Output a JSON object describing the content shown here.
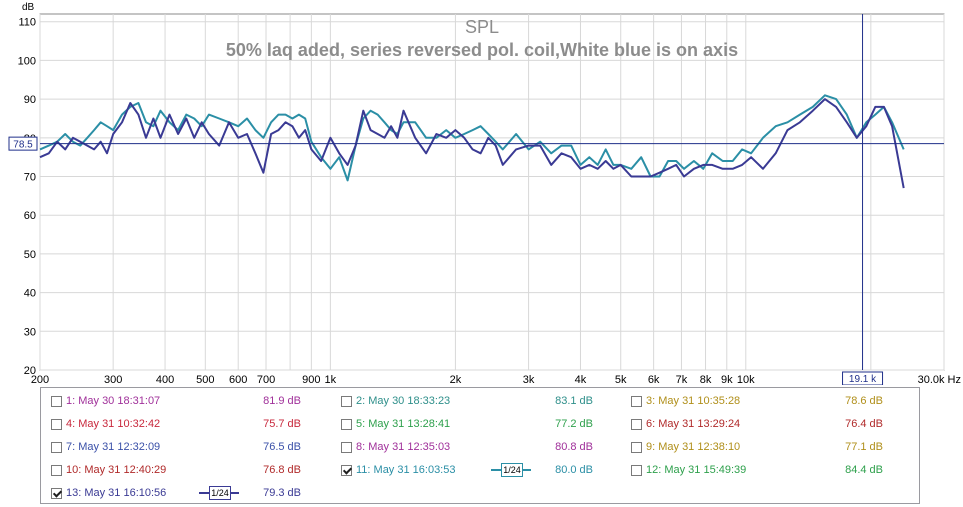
{
  "chart_data": {
    "type": "line",
    "title": "SPL",
    "subtitle": "50% laq aded, series reversed pol. coil,White blue is on axis",
    "ylabel": "dB",
    "xunit": "Hz",
    "xscale": "log",
    "xlim": [
      200,
      30000
    ],
    "ylim": [
      20,
      112
    ],
    "yticks": [
      "110",
      "100",
      "90",
      "80",
      "70",
      "60",
      "50",
      "40",
      "30",
      "20"
    ],
    "xticks": [
      "200",
      "300",
      "400",
      "500",
      "600",
      "700",
      "900",
      "1k",
      "2k",
      "3k",
      "4k",
      "5k",
      "6k",
      "7k",
      "8k",
      "9k",
      "10k",
      "30.0k Hz"
    ],
    "grid": true,
    "cursor": {
      "x_label": "19.1 k",
      "y_label": "78.5",
      "x_hz": 19100,
      "y_db": 78.5
    },
    "series": [
      {
        "name": "11: May 31 16:03:53",
        "color": "#2b8fa6",
        "x": [
          200,
          210,
          220,
          230,
          240,
          250,
          260,
          270,
          280,
          290,
          300,
          315,
          330,
          345,
          360,
          375,
          390,
          410,
          430,
          450,
          470,
          490,
          510,
          540,
          570,
          600,
          630,
          660,
          690,
          720,
          750,
          780,
          810,
          840,
          870,
          900,
          950,
          1000,
          1050,
          1100,
          1150,
          1200,
          1250,
          1300,
          1350,
          1400,
          1450,
          1500,
          1600,
          1700,
          1800,
          1900,
          2000,
          2100,
          2200,
          2300,
          2400,
          2500,
          2600,
          2800,
          3000,
          3200,
          3400,
          3600,
          3800,
          4000,
          4200,
          4400,
          4600,
          4800,
          5000,
          5300,
          5600,
          5900,
          6200,
          6500,
          6800,
          7100,
          7500,
          7900,
          8300,
          8800,
          9300,
          9800,
          10300,
          11000,
          11800,
          12600,
          13500,
          14500,
          15500,
          16500,
          17500,
          18500,
          19500,
          20500,
          21500,
          22500,
          24000
        ],
        "values": [
          77,
          78,
          79,
          81,
          79,
          78,
          80,
          82,
          84,
          83,
          82,
          86,
          88,
          89,
          84,
          83,
          87,
          84,
          82,
          86,
          85,
          83,
          86,
          85,
          84,
          83,
          85,
          82,
          80,
          84,
          86,
          86,
          85,
          86,
          85,
          79,
          75,
          72,
          75,
          69,
          78,
          85,
          87,
          86,
          84,
          82,
          81,
          84,
          84,
          80,
          80,
          82,
          80,
          81,
          82,
          83,
          81,
          79,
          77,
          81,
          77,
          79,
          76,
          78,
          78,
          73,
          75,
          73,
          77,
          73,
          73,
          72,
          75,
          70,
          70,
          74,
          74,
          72,
          74,
          72,
          76,
          74,
          74,
          77,
          76,
          80,
          83,
          84,
          86,
          88,
          91,
          90,
          86,
          80,
          84,
          86,
          88,
          84,
          77
        ]
      },
      {
        "name": "13: May 31 16:10:56",
        "color": "#3a3a94",
        "x": [
          200,
          210,
          220,
          230,
          240,
          250,
          260,
          270,
          280,
          290,
          300,
          315,
          330,
          345,
          360,
          375,
          390,
          410,
          430,
          450,
          470,
          490,
          510,
          540,
          570,
          600,
          630,
          660,
          690,
          720,
          750,
          780,
          810,
          840,
          870,
          900,
          950,
          1000,
          1050,
          1100,
          1150,
          1200,
          1250,
          1300,
          1350,
          1400,
          1450,
          1500,
          1600,
          1700,
          1800,
          1900,
          2000,
          2100,
          2200,
          2300,
          2400,
          2500,
          2600,
          2800,
          3000,
          3200,
          3400,
          3600,
          3800,
          4000,
          4200,
          4400,
          4600,
          4800,
          5000,
          5300,
          5600,
          5900,
          6200,
          6500,
          6800,
          7100,
          7500,
          7900,
          8300,
          8800,
          9300,
          9800,
          10300,
          11000,
          11800,
          12600,
          13500,
          14500,
          15500,
          16500,
          17500,
          18500,
          19500,
          20500,
          21500,
          22500,
          24000
        ],
        "values": [
          75,
          76,
          79,
          77,
          80,
          79,
          78,
          77,
          79,
          76,
          81,
          84,
          89,
          86,
          80,
          85,
          80,
          86,
          81,
          85,
          80,
          84,
          81,
          78,
          84,
          80,
          81,
          76,
          71,
          81,
          82,
          84,
          83,
          80,
          82,
          77,
          74,
          80,
          76,
          73,
          78,
          87,
          82,
          81,
          80,
          83,
          80,
          87,
          80,
          76,
          81,
          80,
          82,
          80,
          77,
          76,
          80,
          78,
          73,
          77,
          78,
          78,
          73,
          76,
          75,
          72,
          73,
          72,
          74,
          72,
          73,
          70,
          70,
          70,
          71,
          72,
          73,
          70,
          72,
          73,
          73,
          72,
          72,
          73,
          75,
          72,
          76,
          82,
          84,
          87,
          90,
          88,
          84,
          80,
          83,
          88,
          88,
          83,
          67
        ]
      }
    ]
  },
  "legend": {
    "smooth_label": "1/24",
    "items": [
      {
        "label": "1: May 30 18:31:07",
        "value": "81.9 dB",
        "color": "#a0309a",
        "checked": false
      },
      {
        "label": "2: May 30 18:33:23",
        "value": "83.1 dB",
        "color": "#2e8f8a",
        "checked": false
      },
      {
        "label": "3: May 31 10:35:28",
        "value": "78.6 dB",
        "color": "#b08f1a",
        "checked": false
      },
      {
        "label": "4: May 31 10:32:42",
        "value": "75.7 dB",
        "color": "#c8283c",
        "checked": false
      },
      {
        "label": "5: May 31 13:28:41",
        "value": "77.2 dB",
        "color": "#2ea04c",
        "checked": false
      },
      {
        "label": "6: May 31 13:29:24",
        "value": "76.4 dB",
        "color": "#b02a2a",
        "checked": false
      },
      {
        "label": "7: May 31 12:32:09",
        "value": "76.5 dB",
        "color": "#3a50a8",
        "checked": false
      },
      {
        "label": "8: May 31 12:35:03",
        "value": "80.8 dB",
        "color": "#a0309a",
        "checked": false
      },
      {
        "label": "9: May 31 12:38:10",
        "value": "77.1 dB",
        "color": "#b08f1a",
        "checked": false
      },
      {
        "label": "10: May 31 12:40:29",
        "value": "76.8 dB",
        "color": "#b02a2a",
        "checked": false
      },
      {
        "label": "11: May 31 16:03:53",
        "value": "80.0 dB",
        "color": "#2b8fa6",
        "checked": true
      },
      {
        "label": "12: May 31 15:49:39",
        "value": "84.4 dB",
        "color": "#2ea04c",
        "checked": false
      },
      {
        "label": "13: May 31 16:10:56",
        "value": "79.3 dB",
        "color": "#3a3a94",
        "checked": true
      }
    ]
  }
}
